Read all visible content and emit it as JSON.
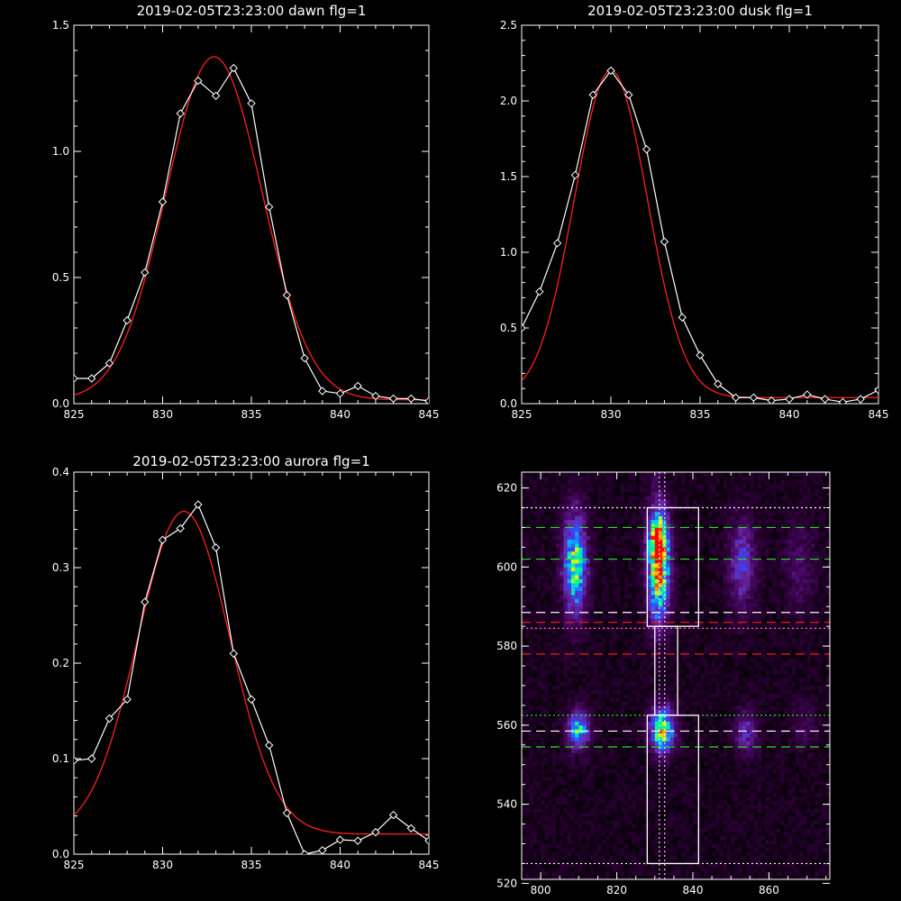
{
  "chart_data": [
    {
      "type": "line",
      "title": "2019-02-05T23:23:00 dawn flg=1",
      "xlim": [
        825,
        845
      ],
      "ylim": [
        0.0,
        1.5
      ],
      "xticks": [
        "825",
        "830",
        "835",
        "840",
        "845"
      ],
      "yticks": [
        "0.0",
        "0.5",
        "1.0",
        "1.5"
      ],
      "series": [
        {
          "style": "data",
          "color": "#ffffff",
          "marker": "diamond",
          "x": [
            825,
            826,
            827,
            828,
            829,
            830,
            831,
            832,
            833,
            834,
            835,
            836,
            837,
            838,
            839,
            840,
            841,
            842,
            843,
            844,
            845
          ],
          "y": [
            0.1,
            0.1,
            0.16,
            0.33,
            0.52,
            0.8,
            1.15,
            1.28,
            1.22,
            1.33,
            1.19,
            0.78,
            0.43,
            0.18,
            0.05,
            0.04,
            0.07,
            0.03,
            0.02,
            0.02,
            0.01
          ]
        },
        {
          "style": "fit",
          "color": "#ff2020",
          "gaussian": {
            "amp": 1.36,
            "center": 832.9,
            "sigma": 2.7,
            "offset": 0.015
          }
        }
      ]
    },
    {
      "type": "line",
      "title": "2019-02-05T23:23:00 dusk flg=1",
      "xlim": [
        825,
        845
      ],
      "ylim": [
        0.0,
        2.5
      ],
      "xticks": [
        "825",
        "830",
        "835",
        "840",
        "845"
      ],
      "yticks": [
        "0.0",
        "0.5",
        "1.0",
        "1.5",
        "2.0",
        "2.5"
      ],
      "series": [
        {
          "style": "data",
          "color": "#ffffff",
          "marker": "diamond",
          "x": [
            825,
            826,
            827,
            828,
            829,
            830,
            831,
            832,
            833,
            834,
            835,
            836,
            837,
            838,
            839,
            840,
            841,
            842,
            843,
            844,
            845
          ],
          "y": [
            0.5,
            0.74,
            1.06,
            1.51,
            2.04,
            2.2,
            2.04,
            1.68,
            1.07,
            0.57,
            0.32,
            0.13,
            0.04,
            0.04,
            0.02,
            0.03,
            0.06,
            0.03,
            0.01,
            0.03,
            0.09
          ]
        },
        {
          "style": "fit",
          "color": "#ff2020",
          "gaussian": {
            "amp": 2.16,
            "center": 830.0,
            "sigma": 2.05,
            "offset": 0.04
          }
        }
      ]
    },
    {
      "type": "line",
      "title": "2019-02-05T23:23:00 aurora flg=1",
      "xlim": [
        825,
        845
      ],
      "ylim": [
        0.0,
        0.4
      ],
      "xticks": [
        "825",
        "830",
        "835",
        "840",
        "845"
      ],
      "yticks": [
        "0.0",
        "0.1",
        "0.2",
        "0.3",
        "0.4"
      ],
      "series": [
        {
          "style": "data",
          "color": "#ffffff",
          "marker": "diamond",
          "x": [
            825,
            826,
            827,
            828,
            829,
            830,
            831,
            832,
            833,
            834,
            835,
            836,
            837,
            838,
            839,
            840,
            841,
            842,
            843,
            844,
            845
          ],
          "y": [
            0.098,
            0.1,
            0.142,
            0.162,
            0.264,
            0.329,
            0.341,
            0.366,
            0.321,
            0.21,
            0.162,
            0.114,
            0.043,
            0.0,
            0.004,
            0.015,
            0.014,
            0.023,
            0.041,
            0.027,
            0.014
          ]
        },
        {
          "style": "fit",
          "color": "#ff2020",
          "gaussian": {
            "amp": 0.338,
            "center": 831.2,
            "sigma": 2.6,
            "offset": 0.021
          }
        }
      ]
    },
    {
      "type": "heatmap",
      "title": "",
      "xlim": [
        795,
        876
      ],
      "ylim": [
        521,
        624
      ],
      "xticks": [
        "800",
        "820",
        "840",
        "860"
      ],
      "yticks": [
        "520",
        "540",
        "560",
        "580",
        "600",
        "620"
      ],
      "colormap": [
        "#000000",
        "#2a0033",
        "#4a0a6a",
        "#6a2aa8",
        "#3344ff",
        "#00c8ff",
        "#00ff88",
        "#ffff00",
        "#ff6600",
        "#ff0000"
      ],
      "blobs": [
        {
          "cx": 809,
          "cy": 601,
          "sx": 2.2,
          "sy": 9,
          "amp": 0.62
        },
        {
          "cx": 810,
          "cy": 559,
          "sx": 2.0,
          "sy": 3.5,
          "amp": 0.55
        },
        {
          "cx": 831,
          "cy": 601,
          "sx": 2.0,
          "sy": 10,
          "amp": 0.85
        },
        {
          "cx": 831,
          "cy": 607,
          "sx": 1.5,
          "sy": 3,
          "amp": 0.5
        },
        {
          "cx": 832,
          "cy": 559,
          "sx": 2.2,
          "sy": 4,
          "amp": 0.75
        },
        {
          "cx": 853,
          "cy": 601,
          "sx": 2.5,
          "sy": 8,
          "amp": 0.33
        },
        {
          "cx": 854,
          "cy": 558,
          "sx": 2.0,
          "sy": 4,
          "amp": 0.3
        },
        {
          "cx": 868,
          "cy": 600,
          "sx": 3.0,
          "sy": 8,
          "amp": 0.15
        },
        {
          "cx": 869,
          "cy": 560,
          "sx": 2.5,
          "sy": 4,
          "amp": 0.12
        }
      ],
      "hlines": [
        {
          "y": 615,
          "color": "#ffffff",
          "dash": "dotted"
        },
        {
          "y": 610,
          "color": "#20e020",
          "dash": "dashed"
        },
        {
          "y": 602,
          "color": "#20e020",
          "dash": "dashed"
        },
        {
          "y": 588.5,
          "color": "#ffffff",
          "dash": "dashed"
        },
        {
          "y": 586,
          "color": "#e02020",
          "dash": "dashed"
        },
        {
          "y": 584.5,
          "color": "#ff66aa",
          "dash": "dotted"
        },
        {
          "y": 578,
          "color": "#e02020",
          "dash": "dashed"
        },
        {
          "y": 562.5,
          "color": "#20e020",
          "dash": "dotted"
        },
        {
          "y": 558.5,
          "color": "#ffffff",
          "dash": "dashed"
        },
        {
          "y": 554.5,
          "color": "#20e020",
          "dash": "dashed"
        },
        {
          "y": 525,
          "color": "#ffffff",
          "dash": "dotted"
        }
      ],
      "vlines": [
        {
          "x": 831.2,
          "color": "#ffffff",
          "dash": "dotted"
        },
        {
          "x": 832.6,
          "color": "#ffffff",
          "dash": "dotted"
        }
      ],
      "rects": [
        {
          "x0": 828,
          "x1": 841.5,
          "y0": 585,
          "y1": 615
        },
        {
          "x0": 830,
          "x1": 836,
          "y0": 562.5,
          "y1": 585
        },
        {
          "x0": 828,
          "x1": 841.5,
          "y0": 525,
          "y1": 562.5
        }
      ]
    }
  ]
}
